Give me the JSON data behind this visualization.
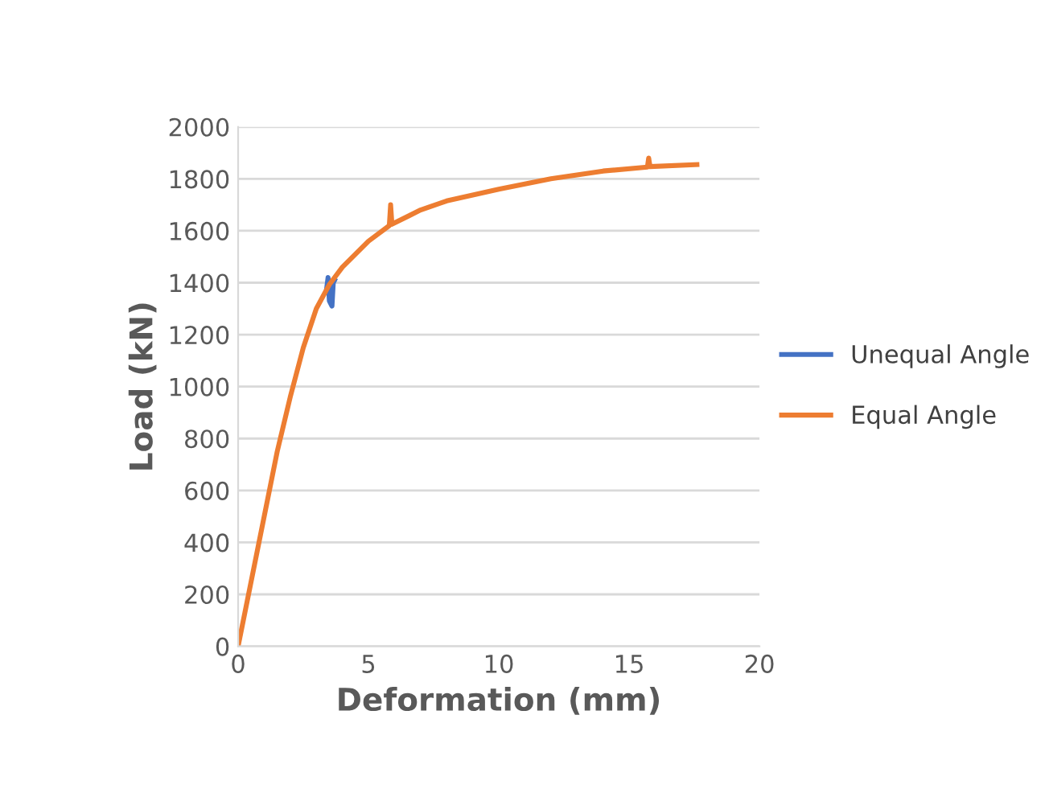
{
  "chart_data": {
    "type": "line",
    "xlabel": "Deformation (mm)",
    "ylabel": "Load (kN)",
    "xlim": [
      0,
      20
    ],
    "xticks": [
      0,
      5,
      10,
      15,
      20
    ],
    "ylim": [
      0,
      2000
    ],
    "yticks": [
      0,
      200,
      400,
      600,
      800,
      1000,
      1200,
      1400,
      1600,
      1800,
      2000
    ],
    "grid": "y",
    "legend": "right",
    "marker": "none",
    "line_style": "solid",
    "series": [
      {
        "name": "Unequal Angle",
        "color": "#4472c4",
        "x": [
          3.4,
          3.45,
          3.5,
          3.6,
          3.65,
          3.7
        ],
        "values": [
          1380,
          1420,
          1330,
          1310,
          1400,
          1410
        ]
      },
      {
        "name": "Equal Angle",
        "color": "#ed7d31",
        "x": [
          0,
          0.5,
          1,
          1.5,
          2,
          2.5,
          3,
          3.5,
          4,
          5,
          5.8,
          5.85,
          5.9,
          7,
          8,
          10,
          12,
          14,
          15.7,
          15.75,
          15.8,
          17.6
        ],
        "values": [
          0,
          250,
          500,
          750,
          960,
          1150,
          1300,
          1393,
          1460,
          1560,
          1620,
          1700,
          1625,
          1680,
          1715,
          1760,
          1800,
          1830,
          1845,
          1880,
          1847,
          1855
        ]
      }
    ]
  }
}
